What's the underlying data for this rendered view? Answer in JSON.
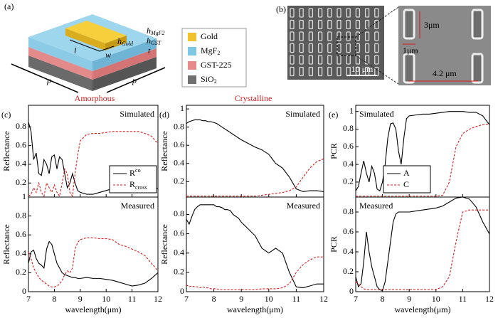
{
  "panel_a": {
    "label": "(a)",
    "dims": [
      {
        "text": "h",
        "sub": "MgF2"
      },
      {
        "text": "h",
        "sub": "Gold"
      },
      {
        "text": "h",
        "sub": "GST"
      },
      {
        "text": "t"
      },
      {
        "text": "l"
      },
      {
        "text": "w"
      },
      {
        "text": "p"
      },
      {
        "text": "p"
      }
    ],
    "legend": [
      {
        "text": "Gold",
        "color": "#f2c12e"
      },
      {
        "text": "MgF",
        "sub": "2",
        "color": "#7ec8e3"
      },
      {
        "text": "GST-225",
        "color": "#e98a8a"
      },
      {
        "text": "SiO",
        "sub": "2",
        "color": "#707070"
      }
    ]
  },
  "panel_b": {
    "label": "(b)",
    "scale_bar": "10 μm",
    "inset_labels": [
      "3μm",
      "1μm",
      "4.2 μm"
    ]
  },
  "headings": [
    {
      "text": "Amorphous",
      "color": "#d62020"
    },
    {
      "text": "Crystalline",
      "color": "#d62020"
    }
  ],
  "chart_data": [
    {
      "type": "line",
      "panel": "(c)",
      "annotation": "Simulated",
      "annotation_position": "upper right",
      "ylabel": "Reflectance",
      "x": [
        7,
        7.1,
        7.2,
        7.3,
        7.4,
        7.5,
        7.6,
        7.7,
        7.8,
        7.9,
        8,
        8.1,
        8.2,
        8.3,
        8.4,
        8.5,
        8.6,
        8.7,
        8.8,
        8.9,
        9,
        9.25,
        9.5,
        9.75,
        10,
        10.25,
        10.5,
        10.75,
        11,
        11.25,
        11.5,
        11.75,
        12
      ],
      "xlim": [
        7,
        12
      ],
      "xticks": [
        7,
        8,
        9,
        10,
        11,
        12
      ],
      "xtick_labels": false,
      "ylim": [
        0.05,
        1.03
      ],
      "yticks": [
        0.2,
        0.4,
        0.6,
        0.8
      ],
      "legend": "lower right",
      "series": [
        {
          "name": "R",
          "name_sup": "co",
          "color": "#000000",
          "dash": false,
          "values": [
            0.85,
            0.75,
            0.45,
            0.52,
            0.3,
            0.28,
            0.45,
            0.4,
            0.3,
            0.48,
            0.5,
            0.35,
            0.48,
            0.45,
            0.3,
            0.15,
            0.2,
            0.3,
            0.2,
            0.12,
            0.1,
            0.08,
            0.08,
            0.1,
            0.12,
            0.14,
            0.15,
            0.14,
            0.12,
            0.12,
            0.14,
            0.15,
            0.14
          ]
        },
        {
          "name": "R",
          "name_sub": "cross",
          "color": "#d62020",
          "dash": true,
          "values": [
            0.06,
            0.08,
            0.15,
            0.1,
            0.2,
            0.1,
            0.06,
            0.2,
            0.15,
            0.1,
            0.18,
            0.1,
            0.06,
            0.2,
            0.35,
            0.3,
            0.1,
            0.06,
            0.3,
            0.5,
            0.65,
            0.72,
            0.73,
            0.73,
            0.74,
            0.75,
            0.75,
            0.75,
            0.75,
            0.75,
            0.73,
            0.7,
            0.62
          ]
        }
      ]
    },
    {
      "type": "line",
      "annotation": "Measured",
      "annotation_position": "upper right",
      "ylabel": "Reflectance",
      "xlabel": "wavelength(μm)",
      "x": [
        7,
        7.1,
        7.2,
        7.3,
        7.4,
        7.5,
        7.6,
        7.7,
        7.8,
        7.9,
        8,
        8.1,
        8.2,
        8.3,
        8.4,
        8.5,
        8.6,
        8.7,
        8.8,
        8.9,
        9,
        9.25,
        9.5,
        9.75,
        10,
        10.25,
        10.5,
        10.75,
        11,
        11.25,
        11.5,
        11.75,
        12
      ],
      "xlim": [
        7,
        12
      ],
      "xticks": [
        7,
        8,
        9,
        10,
        11,
        12
      ],
      "xtick_labels": true,
      "ylim": [
        0,
        1
      ],
      "yticks": [
        0,
        0.2,
        0.4,
        0.6,
        0.8,
        1
      ],
      "series": [
        {
          "name": "R",
          "name_sup": "co",
          "color": "#000000",
          "dash": false,
          "values": [
            0.3,
            0.42,
            0.44,
            0.35,
            0.3,
            0.28,
            0.25,
            0.45,
            0.53,
            0.5,
            0.4,
            0.3,
            0.25,
            0.2,
            0.18,
            0.17,
            0.16,
            0.15,
            0.15,
            0.14,
            0.14,
            0.15,
            0.14,
            0.14,
            0.13,
            0.12,
            0.1,
            0.08,
            0.06,
            0.07,
            0.09,
            0.14,
            0.2
          ]
        },
        {
          "name": "R",
          "name_sub": "cross",
          "color": "#d62020",
          "dash": true,
          "values": [
            0.42,
            0.35,
            0.25,
            0.2,
            0.15,
            0.12,
            0.1,
            0.08,
            0.06,
            0.05,
            0.05,
            0.06,
            0.08,
            0.12,
            0.18,
            0.22,
            0.2,
            0.25,
            0.45,
            0.52,
            0.55,
            0.57,
            0.57,
            0.56,
            0.56,
            0.55,
            0.5,
            0.48,
            0.45,
            0.42,
            0.38,
            0.3,
            0.22
          ]
        }
      ]
    },
    {
      "type": "line",
      "panel": "(d)",
      "annotation": "Simulated",
      "annotation_position": "upper right",
      "ylabel": "Reflectance",
      "x": [
        7,
        7.1,
        7.2,
        7.3,
        7.4,
        7.5,
        7.6,
        7.7,
        7.8,
        7.9,
        8,
        8.1,
        8.2,
        8.3,
        8.4,
        8.5,
        8.6,
        8.7,
        8.8,
        8.9,
        9,
        9.25,
        9.5,
        9.75,
        10,
        10.25,
        10.5,
        10.75,
        11,
        11.25,
        11.5,
        11.75,
        12
      ],
      "xlim": [
        7,
        12
      ],
      "xticks": [
        7,
        8,
        9,
        10,
        11,
        12
      ],
      "xtick_labels": false,
      "ylim": [
        0.03,
        1.04
      ],
      "yticks": [
        0.2,
        0.4,
        0.6,
        0.8,
        1
      ],
      "series": [
        {
          "name": "R",
          "name_sup": "co",
          "color": "#000000",
          "dash": false,
          "values": [
            0.84,
            0.86,
            0.87,
            0.88,
            0.88,
            0.88,
            0.87,
            0.87,
            0.86,
            0.86,
            0.85,
            0.84,
            0.82,
            0.8,
            0.78,
            0.76,
            0.74,
            0.72,
            0.7,
            0.68,
            0.66,
            0.62,
            0.58,
            0.55,
            0.5,
            0.4,
            0.35,
            0.25,
            0.12,
            0.09,
            0.1,
            0.1,
            0.09
          ]
        },
        {
          "name": "R",
          "name_sub": "cross",
          "color": "#d62020",
          "dash": true,
          "values": [
            0.04,
            0.04,
            0.04,
            0.04,
            0.04,
            0.04,
            0.04,
            0.04,
            0.04,
            0.04,
            0.04,
            0.04,
            0.04,
            0.04,
            0.04,
            0.04,
            0.04,
            0.04,
            0.04,
            0.04,
            0.04,
            0.04,
            0.04,
            0.05,
            0.06,
            0.07,
            0.08,
            0.1,
            0.14,
            0.25,
            0.35,
            0.42,
            0.45
          ]
        }
      ]
    },
    {
      "type": "line",
      "annotation": "Measured",
      "annotation_position": "upper right",
      "ylabel": "Reflectance",
      "xlabel": "wavelength(μm)",
      "x": [
        7,
        7.1,
        7.2,
        7.3,
        7.4,
        7.5,
        7.6,
        7.7,
        7.8,
        7.9,
        8,
        8.1,
        8.2,
        8.3,
        8.4,
        8.5,
        8.6,
        8.7,
        8.8,
        8.9,
        9,
        9.25,
        9.5,
        9.75,
        10,
        10.25,
        10.5,
        10.75,
        11,
        11.25,
        11.5,
        11.75,
        12
      ],
      "xlim": [
        7,
        12
      ],
      "xticks": [
        7,
        8,
        9,
        10,
        11,
        12
      ],
      "xtick_labels": true,
      "ylim": [
        0,
        0.98
      ],
      "yticks": [
        0,
        0.2,
        0.4,
        0.6,
        0.8
      ],
      "series": [
        {
          "name": "R",
          "name_sup": "co",
          "color": "#000000",
          "dash": false,
          "values": [
            0.75,
            0.7,
            0.78,
            0.85,
            0.88,
            0.9,
            0.9,
            0.9,
            0.9,
            0.9,
            0.9,
            0.88,
            0.88,
            0.87,
            0.85,
            0.85,
            0.84,
            0.8,
            0.78,
            0.76,
            0.72,
            0.65,
            0.58,
            0.45,
            0.4,
            0.45,
            0.4,
            0.2,
            0.05,
            0.04,
            0.06,
            0.08,
            0.08
          ]
        },
        {
          "name": "R",
          "name_sub": "cross",
          "color": "#d62020",
          "dash": true,
          "values": [
            0.07,
            0.05,
            0.06,
            0.05,
            0.05,
            0.04,
            0.05,
            0.04,
            0.04,
            0.03,
            0.03,
            0.03,
            0.02,
            0.02,
            0.02,
            0.02,
            0.02,
            0.02,
            0.02,
            0.02,
            0.02,
            0.02,
            0.02,
            0.03,
            0.03,
            0.03,
            0.04,
            0.08,
            0.2,
            0.28,
            0.33,
            0.36,
            0.36
          ]
        }
      ]
    },
    {
      "type": "line",
      "panel": "(e)",
      "annotation": "Simulated",
      "annotation_position": "upper left",
      "ylabel": "PCR",
      "x": [
        7,
        7.1,
        7.2,
        7.3,
        7.4,
        7.5,
        7.6,
        7.7,
        7.8,
        7.9,
        8,
        8.1,
        8.2,
        8.3,
        8.4,
        8.5,
        8.6,
        8.7,
        8.8,
        8.9,
        9,
        9.25,
        9.5,
        9.75,
        10,
        10.25,
        10.5,
        10.75,
        11,
        11.25,
        11.5,
        11.75,
        12
      ],
      "xlim": [
        7,
        12
      ],
      "xticks": [
        7,
        8,
        9,
        10,
        11,
        12
      ],
      "xtick_labels": false,
      "ylim": [
        0.03,
        1.07
      ],
      "yticks": [
        0.2,
        0.4,
        0.6,
        0.8,
        1
      ],
      "legend": "lower center",
      "series": [
        {
          "name": "A",
          "color": "#000000",
          "dash": false,
          "values": [
            0.1,
            0.15,
            0.3,
            0.44,
            0.3,
            0.2,
            0.38,
            0.3,
            0.12,
            0.1,
            0.2,
            0.4,
            0.7,
            0.86,
            0.87,
            0.8,
            0.55,
            0.4,
            0.7,
            0.92,
            0.95,
            0.96,
            0.97,
            0.97,
            0.98,
            0.99,
            1,
            1,
            1,
            0.99,
            0.99,
            0.95,
            0.85
          ]
        },
        {
          "name": "C",
          "color": "#d62020",
          "dash": true,
          "values": [
            0.04,
            0.04,
            0.04,
            0.04,
            0.04,
            0.04,
            0.04,
            0.04,
            0.04,
            0.04,
            0.04,
            0.04,
            0.04,
            0.04,
            0.04,
            0.04,
            0.04,
            0.04,
            0.04,
            0.04,
            0.04,
            0.04,
            0.04,
            0.04,
            0.04,
            0.05,
            0.2,
            0.6,
            0.75,
            0.8,
            0.83,
            0.85,
            0.86
          ]
        }
      ]
    },
    {
      "type": "line",
      "annotation": "Measured",
      "annotation_position": "upper left",
      "ylabel": "PCR",
      "xlabel": "wavelength(μm)",
      "x": [
        7,
        7.1,
        7.2,
        7.3,
        7.4,
        7.5,
        7.6,
        7.7,
        7.8,
        7.9,
        8,
        8.1,
        8.2,
        8.3,
        8.4,
        8.5,
        8.6,
        8.7,
        8.8,
        8.9,
        9,
        9.25,
        9.5,
        9.75,
        10,
        10.25,
        10.5,
        10.75,
        11,
        11.25,
        11.5,
        11.75,
        12
      ],
      "xlim": [
        7,
        12
      ],
      "xticks": [
        7,
        8,
        9,
        10,
        11,
        12
      ],
      "xtick_labels": true,
      "ylim": [
        0,
        0.95
      ],
      "yticks": [
        0,
        0.2,
        0.4,
        0.6,
        0.8
      ],
      "series": [
        {
          "name": "A",
          "color": "#000000",
          "dash": false,
          "values": [
            0.15,
            0.05,
            0.08,
            0.3,
            0.6,
            0.4,
            0.25,
            0.15,
            0.05,
            0.02,
            0.01,
            0.1,
            0.3,
            0.5,
            0.7,
            0.78,
            0.8,
            0.8,
            0.8,
            0.8,
            0.8,
            0.81,
            0.82,
            0.83,
            0.84,
            0.86,
            0.9,
            0.94,
            0.95,
            0.93,
            0.85,
            0.7,
            0.58
          ]
        },
        {
          "name": "C",
          "color": "#d62020",
          "dash": true,
          "values": [
            0.1,
            0.08,
            0.05,
            0.03,
            0.02,
            0.02,
            0.02,
            0.02,
            0.02,
            0.02,
            0.02,
            0.02,
            0.02,
            0.02,
            0.02,
            0.02,
            0.02,
            0.02,
            0.02,
            0.02,
            0.02,
            0.02,
            0.02,
            0.02,
            0.02,
            0.05,
            0.15,
            0.5,
            0.8,
            0.82,
            0.82,
            0.82,
            0.82
          ]
        }
      ]
    }
  ]
}
